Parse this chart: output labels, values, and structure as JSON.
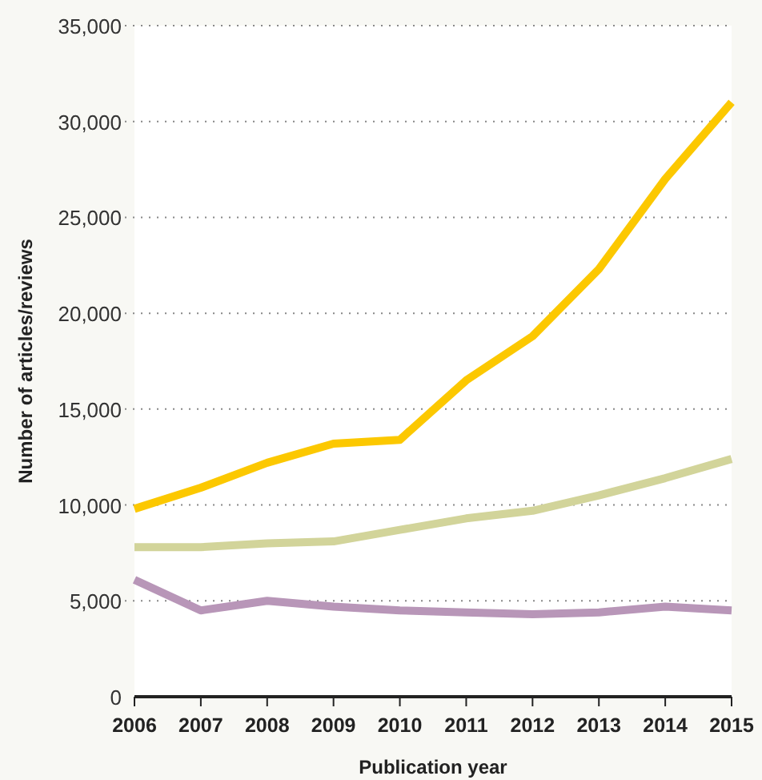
{
  "chart_data": {
    "type": "line",
    "xlabel": "Publication year",
    "ylabel": "Number of articles/reviews",
    "x": [
      2006,
      2007,
      2008,
      2009,
      2010,
      2011,
      2012,
      2013,
      2014,
      2015
    ],
    "xlim": [
      2006,
      2015
    ],
    "xticks": [
      2006,
      2007,
      2008,
      2009,
      2010,
      2011,
      2012,
      2013,
      2014,
      2015
    ],
    "ylim": [
      0,
      35000
    ],
    "yticks": [
      {
        "value": 0,
        "label": "0"
      },
      {
        "value": 5000,
        "label": "5,000"
      },
      {
        "value": 10000,
        "label": "10,000"
      },
      {
        "value": 15000,
        "label": "15,000"
      },
      {
        "value": 20000,
        "label": "20,000"
      },
      {
        "value": 25000,
        "label": "25,000"
      },
      {
        "value": 30000,
        "label": "30,000"
      },
      {
        "value": 35000,
        "label": "35,000"
      }
    ],
    "grid": "y",
    "line_style": "solid",
    "series": [
      {
        "color": "#fcc800",
        "values": [
          9800,
          10900,
          12200,
          13200,
          13400,
          16500,
          18800,
          22300,
          27000,
          31000
        ]
      },
      {
        "color": "#d2d49a",
        "values": [
          7800,
          7800,
          8000,
          8100,
          8700,
          9300,
          9700,
          10500,
          11400,
          12400
        ]
      },
      {
        "color": "#b896b8",
        "values": [
          6100,
          4500,
          5000,
          4700,
          4500,
          4400,
          4300,
          4400,
          4700,
          4500
        ]
      }
    ]
  }
}
